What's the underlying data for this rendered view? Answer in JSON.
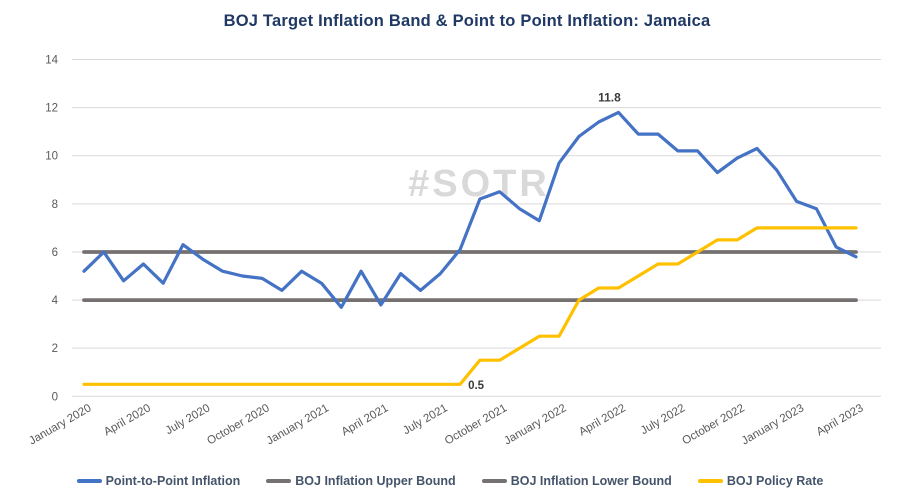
{
  "title": "BOJ Target Inflation Band & Point to Point Inflation: Jamaica",
  "watermark": "#SOTR",
  "colors": {
    "title_text": "#1f3864",
    "legend_text": "#44546a",
    "axis_text": "#595959",
    "gridline": "#d9d9d9",
    "watermark_text": "#d9d9d9",
    "annotation_text": "#3b3b3b",
    "inflation_line": "#4472c4",
    "bound_line": "#767171",
    "policy_line": "#ffc000"
  },
  "annotations": {
    "peak_label": "11.8",
    "policy_start_label": "0.5"
  },
  "chart_data": {
    "type": "line",
    "x": [
      "2020-01",
      "2020-02",
      "2020-03",
      "2020-04",
      "2020-05",
      "2020-06",
      "2020-07",
      "2020-08",
      "2020-09",
      "2020-10",
      "2020-11",
      "2020-12",
      "2021-01",
      "2021-02",
      "2021-03",
      "2021-04",
      "2021-05",
      "2021-06",
      "2021-07",
      "2021-08",
      "2021-09",
      "2021-10",
      "2021-11",
      "2021-12",
      "2022-01",
      "2022-02",
      "2022-03",
      "2022-04",
      "2022-05",
      "2022-06",
      "2022-07",
      "2022-08",
      "2022-09",
      "2022-10",
      "2022-11",
      "2022-12",
      "2023-01",
      "2023-02",
      "2023-03",
      "2023-04"
    ],
    "x_tick_labels": [
      "January 2020",
      "April 2020",
      "July 2020",
      "October 2020",
      "January 2021",
      "April 2021",
      "July 2021",
      "October 2021",
      "January 2022",
      "April 2022",
      "July 2022",
      "October 2022",
      "January 2023",
      "April 2023"
    ],
    "x_tick_every_months": 3,
    "ylim": [
      0,
      14
    ],
    "ytick_step": 2,
    "grid": "horizontal-light",
    "legend_position": "bottom",
    "title": "BOJ Target Inflation Band & Point to Point Inflation: Jamaica",
    "series": [
      {
        "name": "Point-to-Point Inflation",
        "color": "#4472c4",
        "values": [
          5.2,
          6.0,
          4.8,
          5.5,
          4.7,
          6.3,
          5.7,
          5.2,
          5.0,
          4.9,
          4.4,
          5.2,
          4.7,
          3.7,
          5.2,
          3.8,
          5.1,
          4.4,
          5.1,
          6.1,
          8.2,
          8.5,
          7.8,
          7.3,
          9.7,
          10.8,
          11.4,
          11.8,
          10.9,
          10.9,
          10.2,
          10.2,
          9.3,
          9.9,
          10.3,
          9.4,
          8.1,
          7.8,
          6.2,
          5.8
        ]
      },
      {
        "name": "BOJ Inflation Upper Bound",
        "color": "#767171",
        "values": [
          6,
          6,
          6,
          6,
          6,
          6,
          6,
          6,
          6,
          6,
          6,
          6,
          6,
          6,
          6,
          6,
          6,
          6,
          6,
          6,
          6,
          6,
          6,
          6,
          6,
          6,
          6,
          6,
          6,
          6,
          6,
          6,
          6,
          6,
          6,
          6,
          6,
          6,
          6,
          6
        ]
      },
      {
        "name": "BOJ Inflation Lower Bound",
        "color": "#767171",
        "values": [
          4,
          4,
          4,
          4,
          4,
          4,
          4,
          4,
          4,
          4,
          4,
          4,
          4,
          4,
          4,
          4,
          4,
          4,
          4,
          4,
          4,
          4,
          4,
          4,
          4,
          4,
          4,
          4,
          4,
          4,
          4,
          4,
          4,
          4,
          4,
          4,
          4,
          4,
          4,
          4
        ]
      },
      {
        "name": "BOJ Policy Rate",
        "color": "#ffc000",
        "values": [
          0.5,
          0.5,
          0.5,
          0.5,
          0.5,
          0.5,
          0.5,
          0.5,
          0.5,
          0.5,
          0.5,
          0.5,
          0.5,
          0.5,
          0.5,
          0.5,
          0.5,
          0.5,
          0.5,
          0.5,
          1.5,
          1.5,
          2.0,
          2.5,
          2.5,
          4.0,
          4.5,
          4.5,
          5.0,
          5.5,
          5.5,
          6.0,
          6.5,
          6.5,
          7.0,
          7.0,
          7.0,
          7.0,
          7.0,
          7.0
        ]
      }
    ],
    "point_annotations": [
      {
        "text": "11.8",
        "series": "Point-to-Point Inflation",
        "x": "2022-04",
        "y": 11.8,
        "position": "above"
      },
      {
        "text": "0.5",
        "series": "BOJ Policy Rate",
        "x": "2021-08",
        "y": 0.5,
        "position": "right"
      }
    ]
  }
}
